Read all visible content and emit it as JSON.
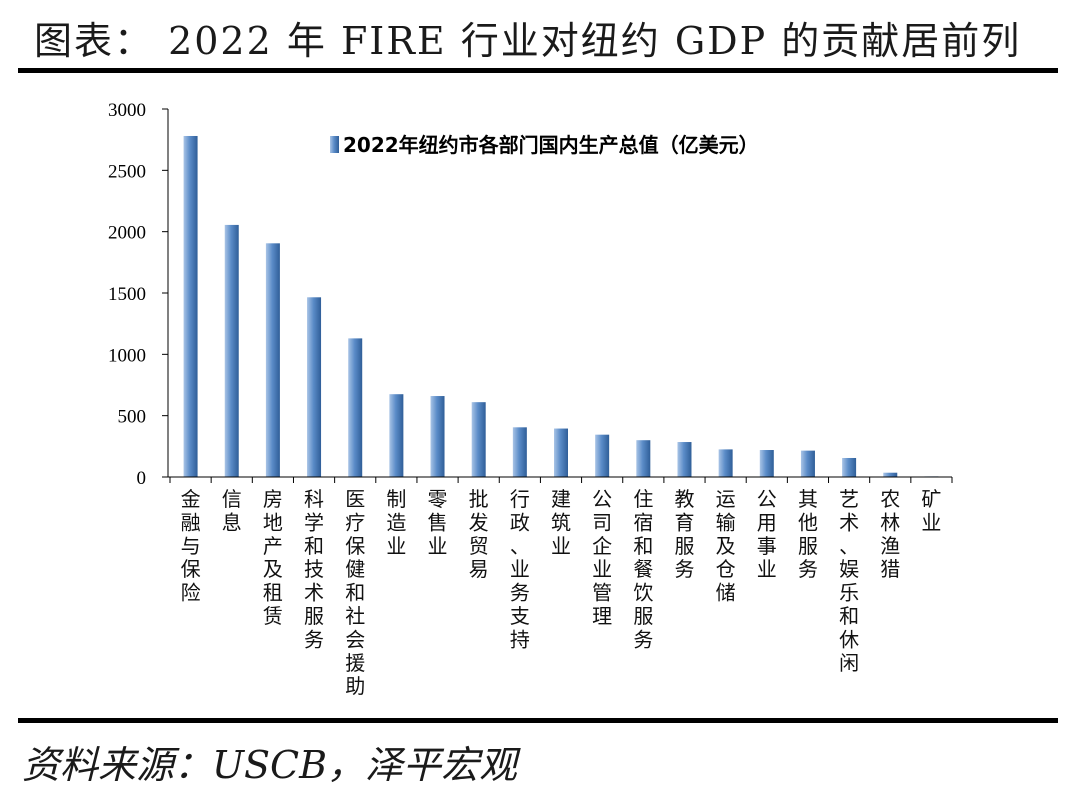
{
  "header": {
    "title": "图表： 2022 年 FIRE 行业对纽约 GDP 的贡献居前列"
  },
  "footer": {
    "source": "资料来源：USCB，泽平宏观"
  },
  "colors": {
    "bar_light": "#a9c4e6",
    "bar_mid": "#5b8cc8",
    "bar_dark": "#2f5e98",
    "axis": "#000000"
  },
  "chart_data": {
    "type": "bar",
    "title": "",
    "legend": [
      "2022年纽约市各部门国内生产总值（亿美元）"
    ],
    "legend_position": "top-center",
    "xlabel": "",
    "ylabel": "",
    "ylim": [
      0,
      3000
    ],
    "yticks": [
      0,
      500,
      1000,
      1500,
      2000,
      2500,
      3000
    ],
    "categories": [
      "金融与保险",
      "信息",
      "房地产及租赁",
      "科学和技术服务",
      "医疗保健和社会援助",
      "制造业",
      "零售业",
      "批发贸易",
      "行政、业务支持",
      "建筑业",
      "公司企业管理",
      "住宿和餐饮服务",
      "教育服务",
      "运输及仓储",
      "公用事业",
      "其他服务",
      "艺术、娱乐和休闲",
      "农林渔猎",
      "矿业"
    ],
    "series": [
      {
        "name": "2022年纽约市各部门国内生产总值（亿美元）",
        "values": [
          2780,
          2055,
          1905,
          1465,
          1130,
          675,
          660,
          610,
          405,
          395,
          345,
          300,
          285,
          225,
          220,
          215,
          155,
          35,
          5
        ]
      }
    ]
  }
}
